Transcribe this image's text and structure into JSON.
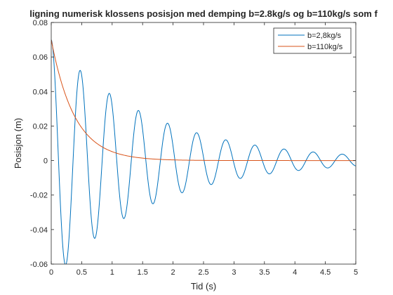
{
  "chart_data": {
    "type": "line",
    "title": "ligning numerisk klossens posisjon med demping b=2.8kg/s og b=110kg/s som f",
    "xlabel": "Tid (s)",
    "ylabel": "Posisjon (m)",
    "xlim": [
      0,
      5
    ],
    "ylim": [
      -0.06,
      0.08
    ],
    "xticks": [
      0,
      0.5,
      1,
      1.5,
      2,
      2.5,
      3,
      3.5,
      4,
      4.5,
      5
    ],
    "xtick_labels": [
      "0",
      "0.5",
      "1",
      "1.5",
      "2",
      "2.5",
      "3",
      "3.5",
      "4",
      "4.5",
      "5"
    ],
    "yticks": [
      -0.06,
      -0.04,
      -0.02,
      0,
      0.02,
      0.04,
      0.06,
      0.08
    ],
    "ytick_labels": [
      "-0.06",
      "-0.04",
      "-0.02",
      "0",
      "0.02",
      "0.04",
      "0.06",
      "0.08"
    ],
    "grid": false,
    "legend_position": "top-right",
    "series": [
      {
        "name": "b=2,8kg/s",
        "color": "#0072BD",
        "model": "damped-cosine",
        "x0": 0.07,
        "decay_rate": 0.615,
        "period": 0.478,
        "extrema": [
          {
            "x": 0.0,
            "y": 0.07
          },
          {
            "x": 0.24,
            "y": -0.0605
          },
          {
            "x": 0.475,
            "y": 0.05
          },
          {
            "x": 0.715,
            "y": -0.0425
          },
          {
            "x": 0.955,
            "y": 0.036
          },
          {
            "x": 1.195,
            "y": -0.0305
          },
          {
            "x": 1.435,
            "y": 0.026
          },
          {
            "x": 1.67,
            "y": -0.0215
          },
          {
            "x": 1.91,
            "y": 0.0185
          },
          {
            "x": 2.15,
            "y": -0.0155
          },
          {
            "x": 2.385,
            "y": 0.0135
          },
          {
            "x": 2.625,
            "y": -0.011
          },
          {
            "x": 2.865,
            "y": 0.0095
          },
          {
            "x": 3.1,
            "y": -0.008
          },
          {
            "x": 3.34,
            "y": 0.0068
          },
          {
            "x": 3.58,
            "y": -0.0058
          },
          {
            "x": 3.82,
            "y": 0.0048
          },
          {
            "x": 4.06,
            "y": -0.0041
          },
          {
            "x": 4.295,
            "y": 0.0034
          },
          {
            "x": 4.535,
            "y": -0.0029
          },
          {
            "x": 4.775,
            "y": 0.0024
          }
        ]
      },
      {
        "name": "b=110kg/s",
        "color": "#D95319",
        "model": "exponential-decay",
        "points": [
          {
            "x": 0.0,
            "y": 0.07
          },
          {
            "x": 0.1,
            "y": 0.06
          },
          {
            "x": 0.2,
            "y": 0.046
          },
          {
            "x": 0.3,
            "y": 0.034
          },
          {
            "x": 0.5,
            "y": 0.019
          },
          {
            "x": 0.7,
            "y": 0.0105
          },
          {
            "x": 1.0,
            "y": 0.004
          },
          {
            "x": 1.5,
            "y": 0.0008
          },
          {
            "x": 2.0,
            "y": 0.0001
          },
          {
            "x": 3.0,
            "y": 0.0
          },
          {
            "x": 5.0,
            "y": 0.0
          }
        ]
      }
    ]
  }
}
